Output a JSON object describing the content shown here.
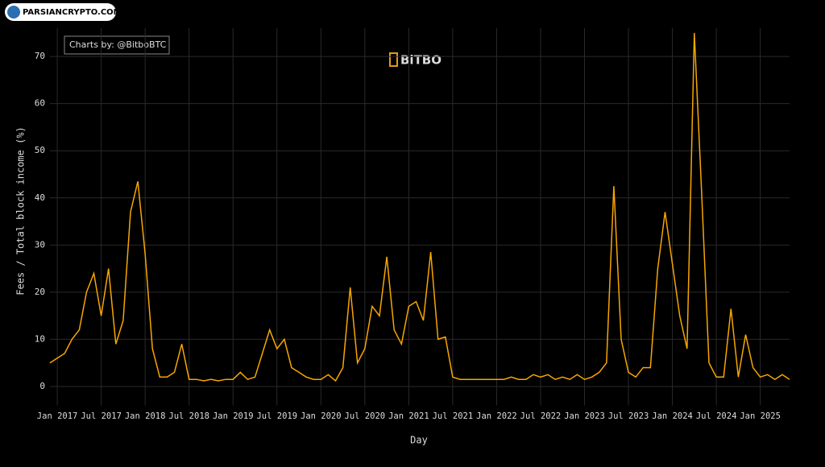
{
  "watermark": "PARSIANCRYPTO.COM",
  "chart_data": {
    "type": "line",
    "credit": "Charts by: @BitboBTC",
    "logo": "BiTBO",
    "x_label": "Day",
    "y_label": "Fees / Total block income (%)",
    "grid": true,
    "x": [
      "2016-12",
      "2017-01",
      "2017-02",
      "2017-03",
      "2017-04",
      "2017-05",
      "2017-06",
      "2017-07",
      "2017-08",
      "2017-09",
      "2017-10",
      "2017-11",
      "2017-12",
      "2018-01",
      "2018-02",
      "2018-03",
      "2018-04",
      "2018-05",
      "2018-06",
      "2018-07",
      "2018-08",
      "2018-09",
      "2018-10",
      "2018-11",
      "2018-12",
      "2019-01",
      "2019-02",
      "2019-03",
      "2019-04",
      "2019-05",
      "2019-06",
      "2019-07",
      "2019-08",
      "2019-09",
      "2019-10",
      "2019-11",
      "2019-12",
      "2020-01",
      "2020-02",
      "2020-03",
      "2020-04",
      "2020-05",
      "2020-06",
      "2020-07",
      "2020-08",
      "2020-09",
      "2020-10",
      "2020-11",
      "2020-12",
      "2021-01",
      "2021-02",
      "2021-03",
      "2021-04",
      "2021-05",
      "2021-06",
      "2021-07",
      "2021-08",
      "2021-09",
      "2021-10",
      "2021-11",
      "2021-12",
      "2022-01",
      "2022-02",
      "2022-03",
      "2022-04",
      "2022-05",
      "2022-06",
      "2022-07",
      "2022-08",
      "2022-09",
      "2022-10",
      "2022-11",
      "2022-12",
      "2023-01",
      "2023-02",
      "2023-03",
      "2023-04",
      "2023-05",
      "2023-06",
      "2023-07",
      "2023-08",
      "2023-09",
      "2023-10",
      "2023-11",
      "2023-12",
      "2024-01",
      "2024-02",
      "2024-03",
      "2024-04",
      "2024-05",
      "2024-06",
      "2024-07",
      "2024-08",
      "2024-09",
      "2024-10",
      "2024-11",
      "2024-12",
      "2025-01",
      "2025-02",
      "2025-03",
      "2025-04",
      "2025-05"
    ],
    "series": [
      {
        "color": "#f7a600",
        "values": [
          5,
          6,
          7,
          10,
          12,
          20,
          24,
          15,
          25,
          9,
          14,
          37,
          43.5,
          28,
          8,
          2,
          2,
          3,
          9,
          1.5,
          1.5,
          1.2,
          1.5,
          1.2,
          1.5,
          1.5,
          3,
          1.5,
          2,
          7,
          12,
          8,
          10,
          4,
          3,
          2,
          1.5,
          1.5,
          2.5,
          1.2,
          4,
          21,
          5,
          8,
          17,
          15,
          27.5,
          12,
          9,
          17,
          18,
          14,
          28.5,
          10,
          10.5,
          2,
          1.5,
          1.5,
          1.5,
          1.5,
          1.5,
          1.5,
          1.5,
          2,
          1.5,
          1.5,
          2.5,
          2,
          2.5,
          1.5,
          2,
          1.5,
          2.5,
          1.5,
          2,
          3,
          5,
          42.5,
          10,
          3,
          2,
          4,
          4,
          25,
          37,
          26,
          15,
          8,
          75,
          41,
          5,
          2,
          2,
          16.5,
          2,
          11,
          4,
          2,
          2.5,
          1.5,
          2.5,
          1.5
        ]
      }
    ],
    "xlim": [
      "2016-12",
      "2025-05"
    ],
    "xticks": [
      {
        "value": "2017-01",
        "label": "Jan 2017"
      },
      {
        "value": "2017-07",
        "label": "Jul 2017"
      },
      {
        "value": "2018-01",
        "label": "Jan 2018"
      },
      {
        "value": "2018-07",
        "label": "Jul 2018"
      },
      {
        "value": "2019-01",
        "label": "Jan 2019"
      },
      {
        "value": "2019-07",
        "label": "Jul 2019"
      },
      {
        "value": "2020-01",
        "label": "Jan 2020"
      },
      {
        "value": "2020-07",
        "label": "Jul 2020"
      },
      {
        "value": "2021-01",
        "label": "Jan 2021"
      },
      {
        "value": "2021-07",
        "label": "Jul 2021"
      },
      {
        "value": "2022-01",
        "label": "Jan 2022"
      },
      {
        "value": "2022-07",
        "label": "Jul 2022"
      },
      {
        "value": "2023-01",
        "label": "Jan 2023"
      },
      {
        "value": "2023-07",
        "label": "Jul 2023"
      },
      {
        "value": "2024-01",
        "label": "Jan 2024"
      },
      {
        "value": "2024-07",
        "label": "Jul 2024"
      },
      {
        "value": "2025-01",
        "label": "Jan 2025"
      }
    ],
    "ylim": [
      -4,
      76
    ],
    "yticks": [
      0,
      10,
      20,
      30,
      40,
      50,
      60,
      70
    ]
  }
}
